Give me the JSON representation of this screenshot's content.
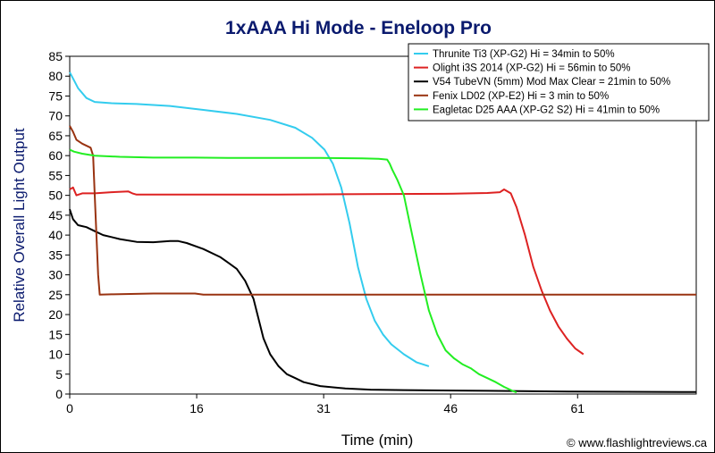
{
  "chart_data": {
    "type": "line",
    "title": "1xAAA Hi Mode - Eneloop Pro",
    "xlabel": "Time (min)",
    "ylabel": "Relative Overall Light Output",
    "xlim": [
      0,
      75
    ],
    "ylim": [
      0,
      85
    ],
    "x_ticks": [
      "0",
      "16",
      "31",
      "46",
      "61"
    ],
    "x_tick_values": [
      0,
      15.2,
      30.4,
      45.6,
      60.8
    ],
    "y_ticks": [
      "0",
      "5",
      "10",
      "15",
      "20",
      "25",
      "30",
      "35",
      "40",
      "45",
      "50",
      "55",
      "60",
      "65",
      "70",
      "75",
      "80",
      "85"
    ],
    "grid": false,
    "legend_position": "top-right",
    "credit": "© www.flashlightreviews.ca",
    "series": [
      {
        "name": "Thrunite Ti3 (XP-G2) Hi = 34min to 50%",
        "color": "#33ccee",
        "points": [
          [
            0,
            81
          ],
          [
            0.5,
            79
          ],
          [
            1,
            77
          ],
          [
            2,
            74.5
          ],
          [
            3,
            73.5
          ],
          [
            5,
            73.2
          ],
          [
            8,
            73
          ],
          [
            12,
            72.5
          ],
          [
            16,
            71.5
          ],
          [
            20,
            70.5
          ],
          [
            24,
            69
          ],
          [
            27,
            67
          ],
          [
            29,
            64.5
          ],
          [
            30.5,
            61.5
          ],
          [
            31.5,
            58
          ],
          [
            32.5,
            52
          ],
          [
            33.5,
            43
          ],
          [
            34.5,
            32
          ],
          [
            35.5,
            24
          ],
          [
            36.5,
            18.5
          ],
          [
            37.5,
            15
          ],
          [
            38.5,
            12.5
          ],
          [
            40,
            10
          ],
          [
            41.5,
            8
          ],
          [
            43,
            7
          ]
        ]
      },
      {
        "name": "Olight i3S 2014 (XP-G2) Hi = 56min to 50%",
        "color": "#dd2222",
        "points": [
          [
            0,
            51.5
          ],
          [
            0.4,
            52
          ],
          [
            0.8,
            50
          ],
          [
            1.5,
            50.5
          ],
          [
            3,
            50.5
          ],
          [
            5,
            50.8
          ],
          [
            7,
            51
          ],
          [
            7.5,
            50.5
          ],
          [
            8,
            50.2
          ],
          [
            15,
            50.2
          ],
          [
            25,
            50.2
          ],
          [
            35,
            50.3
          ],
          [
            45,
            50.4
          ],
          [
            50,
            50.6
          ],
          [
            51.5,
            50.8
          ],
          [
            52,
            51.5
          ],
          [
            52.8,
            50.5
          ],
          [
            53.5,
            47
          ],
          [
            54.5,
            40
          ],
          [
            55.5,
            32
          ],
          [
            56.5,
            26
          ],
          [
            57.5,
            21
          ],
          [
            58.5,
            17
          ],
          [
            59.5,
            14
          ],
          [
            60.5,
            11.5
          ],
          [
            61.5,
            10
          ]
        ]
      },
      {
        "name": "V54 TubeVN (5mm) Mod Max Clear = 21min to 50%",
        "color": "#000000",
        "points": [
          [
            0,
            46.5
          ],
          [
            0.4,
            44
          ],
          [
            1,
            42.5
          ],
          [
            2,
            42
          ],
          [
            3,
            41
          ],
          [
            4,
            40
          ],
          [
            5,
            39.5
          ],
          [
            6,
            39
          ],
          [
            8,
            38.3
          ],
          [
            10,
            38.2
          ],
          [
            12,
            38.5
          ],
          [
            13,
            38.5
          ],
          [
            14,
            38
          ],
          [
            16,
            36.5
          ],
          [
            18,
            34.5
          ],
          [
            19,
            33
          ],
          [
            20,
            31.5
          ],
          [
            21,
            28.5
          ],
          [
            22,
            24
          ],
          [
            22.6,
            19
          ],
          [
            23.2,
            14
          ],
          [
            24,
            10
          ],
          [
            25,
            7
          ],
          [
            26,
            5
          ],
          [
            27,
            4
          ],
          [
            28,
            3
          ],
          [
            30,
            2
          ],
          [
            33,
            1.4
          ],
          [
            36,
            1.1
          ],
          [
            40,
            1
          ],
          [
            50,
            0.8
          ],
          [
            60,
            0.6
          ],
          [
            75,
            0.5
          ]
        ]
      },
      {
        "name": "Fenix LD02 (XP-E2) Hi = 3 min to 50%",
        "color": "#993311",
        "points": [
          [
            0,
            67.5
          ],
          [
            0.4,
            66
          ],
          [
            0.8,
            64
          ],
          [
            1.5,
            63
          ],
          [
            2.5,
            62
          ],
          [
            2.8,
            60
          ],
          [
            3,
            50
          ],
          [
            3.2,
            40
          ],
          [
            3.4,
            30
          ],
          [
            3.6,
            25
          ],
          [
            5,
            25.1
          ],
          [
            10,
            25.3
          ],
          [
            15,
            25.3
          ],
          [
            16,
            25
          ],
          [
            30,
            25
          ],
          [
            45,
            25
          ],
          [
            60,
            25
          ],
          [
            75,
            25
          ]
        ]
      },
      {
        "name": "Eagletac D25 AAA (XP-G2 S2) Hi = 41min to 50%",
        "color": "#22ee22",
        "points": [
          [
            0,
            61.5
          ],
          [
            0.5,
            61
          ],
          [
            1.5,
            60.5
          ],
          [
            3,
            60
          ],
          [
            6,
            59.7
          ],
          [
            10,
            59.5
          ],
          [
            15,
            59.5
          ],
          [
            20,
            59.4
          ],
          [
            25,
            59.4
          ],
          [
            30,
            59.4
          ],
          [
            35,
            59.3
          ],
          [
            37,
            59.2
          ],
          [
            38,
            59
          ],
          [
            38.3,
            58
          ],
          [
            38.6,
            56.5
          ],
          [
            39.2,
            54
          ],
          [
            40,
            50
          ],
          [
            41,
            40
          ],
          [
            42,
            30
          ],
          [
            43,
            21
          ],
          [
            44,
            15
          ],
          [
            45,
            11
          ],
          [
            46,
            9
          ],
          [
            47,
            7.5
          ],
          [
            48,
            6.5
          ],
          [
            49,
            5
          ],
          [
            50,
            4
          ],
          [
            51,
            3
          ],
          [
            52,
            1.8
          ],
          [
            53,
            0.8
          ],
          [
            53.5,
            0.4
          ]
        ]
      }
    ]
  }
}
